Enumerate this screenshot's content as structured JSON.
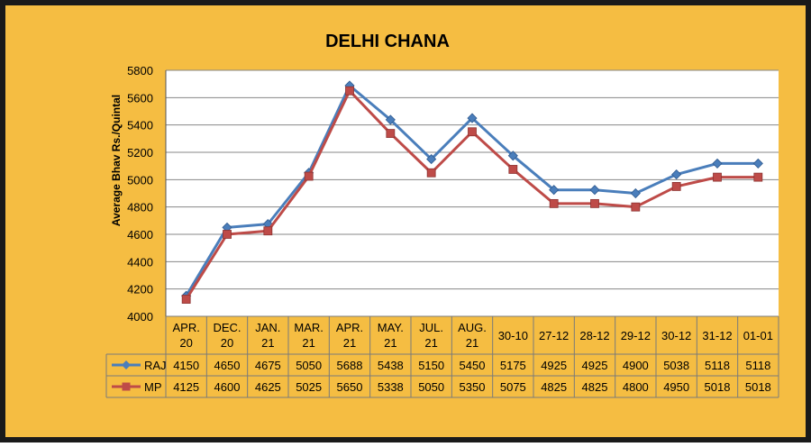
{
  "chart_data": {
    "type": "line",
    "title": "DELHI CHANA",
    "ylabel": "Average Bhav Rs./Quintal",
    "xlabel": "",
    "ylim": [
      4000,
      5800
    ],
    "yticks": [
      4000,
      4200,
      4400,
      4600,
      4800,
      5000,
      5200,
      5400,
      5600,
      5800
    ],
    "grid": true,
    "legend": "data-table",
    "categories": [
      [
        "APR.",
        "20"
      ],
      [
        "DEC.",
        "20"
      ],
      [
        "JAN.",
        "21"
      ],
      [
        "MAR.",
        "21"
      ],
      [
        "APR.",
        "21"
      ],
      [
        "MAY.",
        "21"
      ],
      [
        "JUL.",
        "21"
      ],
      [
        "AUG.",
        "21"
      ],
      [
        "30-10"
      ],
      [
        "27-12"
      ],
      [
        "28-12"
      ],
      [
        "29-12"
      ],
      [
        "30-12"
      ],
      [
        "31-12"
      ],
      [
        "01-01"
      ]
    ],
    "series": [
      {
        "name": "RAJ",
        "color": "#4a7ebb",
        "marker": "diamond",
        "values": [
          4150,
          4650,
          4675,
          5050,
          5688,
          5438,
          5150,
          5450,
          5175,
          4925,
          4925,
          4900,
          5038,
          5118,
          5118
        ]
      },
      {
        "name": "MP",
        "color": "#be4b48",
        "marker": "square",
        "values": [
          4125,
          4600,
          4625,
          5025,
          5650,
          5338,
          5050,
          5350,
          5075,
          4825,
          4825,
          4800,
          4950,
          5018,
          5018
        ]
      }
    ]
  },
  "colors": {
    "background": "#f5bd42",
    "plot": "#ffffff",
    "grid": "#878787",
    "border": "#1a1a1a"
  }
}
